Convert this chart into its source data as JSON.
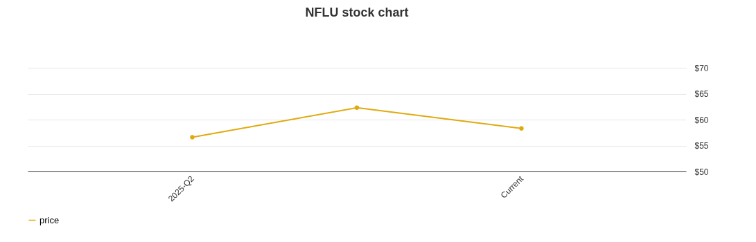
{
  "chart_data": {
    "type": "line",
    "title": "NFLU stock chart",
    "categories": [
      "2025-Q2",
      null,
      "Current"
    ],
    "series": [
      {
        "name": "price",
        "color": "#e0aa0f",
        "values": [
          56.6,
          62.3,
          58.3
        ]
      }
    ],
    "ylim": [
      50,
      70
    ],
    "yticks": [
      {
        "value": 50,
        "label": "$50"
      },
      {
        "value": 55,
        "label": "$55"
      },
      {
        "value": 60,
        "label": "$60"
      },
      {
        "value": 65,
        "label": "$65"
      },
      {
        "value": 70,
        "label": "$70"
      }
    ],
    "grid": "y",
    "legend": "bottom",
    "marker": "circle"
  }
}
